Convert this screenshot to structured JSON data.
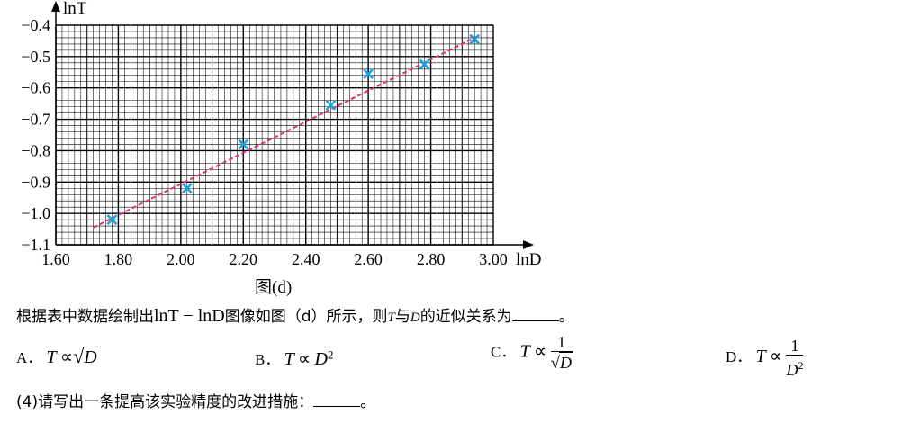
{
  "chart_data": {
    "type": "scatter",
    "x_axis_label": "lnD",
    "y_axis_label": "lnT",
    "xlim": [
      1.6,
      3.0
    ],
    "ylim": [
      -1.1,
      -0.4
    ],
    "x_ticks": [
      "1.60",
      "1.80",
      "2.00",
      "2.20",
      "2.40",
      "2.60",
      "2.80",
      "3.00"
    ],
    "y_ticks": [
      "−0.4",
      "−0.5",
      "−0.6",
      "−0.7",
      "−0.8",
      "−0.9",
      "−1.0",
      "−1.1"
    ],
    "points": [
      {
        "x": 1.78,
        "y": -1.02
      },
      {
        "x": 2.02,
        "y": -0.92
      },
      {
        "x": 2.2,
        "y": -0.78
      },
      {
        "x": 2.48,
        "y": -0.655
      },
      {
        "x": 2.6,
        "y": -0.555
      },
      {
        "x": 2.78,
        "y": -0.525
      },
      {
        "x": 2.94,
        "y": -0.445
      }
    ],
    "fit_line": {
      "x_start": 1.72,
      "y_start": -1.045,
      "x_end": 2.95,
      "y_end": -0.435
    },
    "grid": true,
    "marker_color": "#1ba1e2",
    "line_color": "#d6336c"
  },
  "figure_caption": "图(d)",
  "question": {
    "text_before": "根据表中数据绘制出",
    "math": "lnT − lnD",
    "text_mid": "图像如图（d）所示，则",
    "var_t": "T",
    "text_and": "与",
    "var_d": "D",
    "text_after": "的近似关系为",
    "end": "。"
  },
  "options": {
    "a_label": "A．",
    "b_label": "B．",
    "c_label": "C．",
    "d_label": "D．",
    "t": "T",
    "prop": "∝",
    "d": "D",
    "sq": "2",
    "one": "1",
    "radical": "√"
  },
  "question4": {
    "text": "(4)请写出一条提高该实验精度的改进措施：",
    "end": "。"
  }
}
